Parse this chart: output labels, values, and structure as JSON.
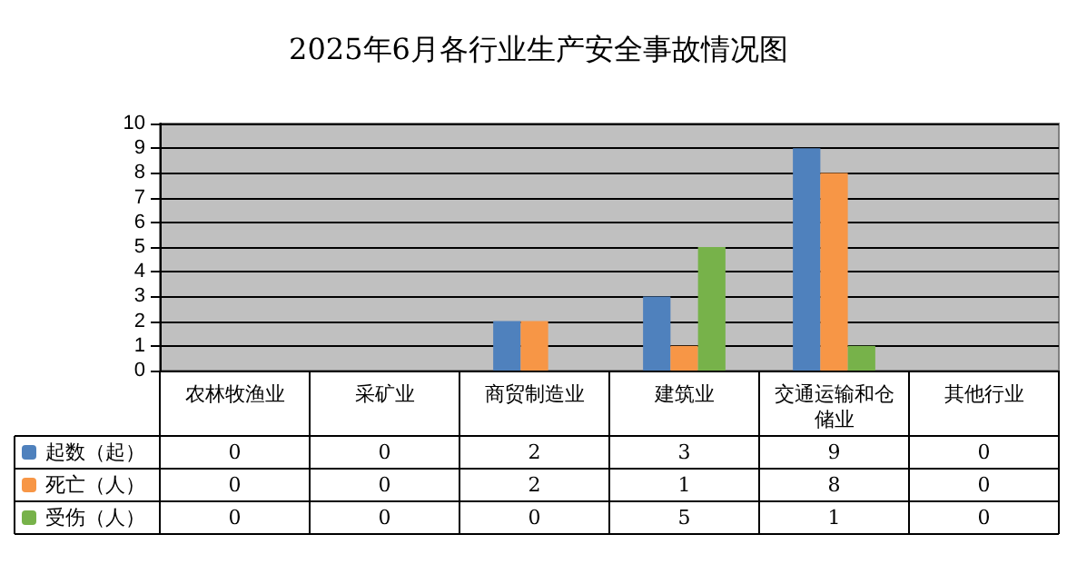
{
  "chart_data": {
    "type": "bar",
    "title": "2025年6月各行业生产安全事故情况图",
    "categories": [
      "农林牧渔业",
      "采矿业",
      "商贸制造业",
      "建筑业",
      "交通运输和仓储业",
      "其他行业"
    ],
    "series": [
      {
        "name": "起数（起）",
        "color": "#4f81bd",
        "values": [
          0,
          0,
          2,
          3,
          9,
          0
        ]
      },
      {
        "name": "死亡（人）",
        "color": "#f79646",
        "values": [
          0,
          0,
          2,
          1,
          8,
          0
        ]
      },
      {
        "name": "受伤（人）",
        "color": "#77b24a",
        "values": [
          0,
          0,
          0,
          5,
          1,
          0
        ]
      }
    ],
    "ylim": [
      0,
      10
    ],
    "yticks": [
      0,
      1,
      2,
      3,
      4,
      5,
      6,
      7,
      8,
      9,
      10
    ],
    "grid": "y",
    "legend": "bottom left",
    "data_labels": true
  }
}
